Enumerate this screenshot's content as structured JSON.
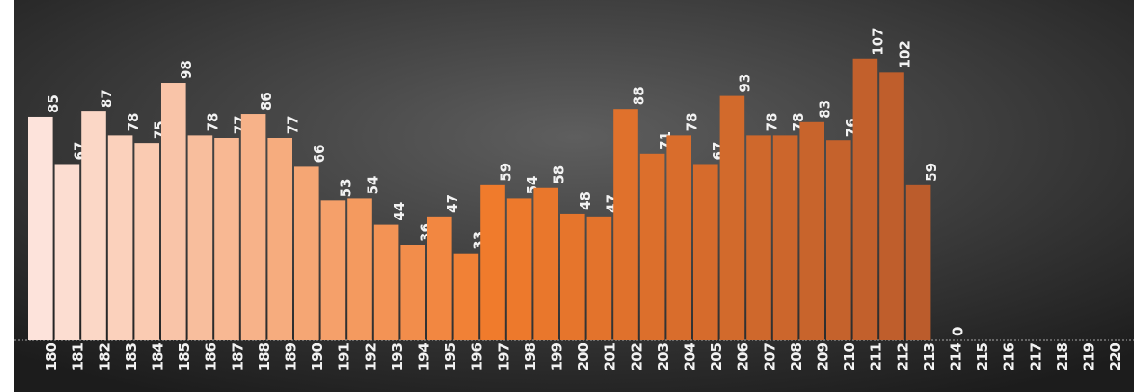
{
  "chart_data": {
    "type": "bar",
    "categories": [
      "180",
      "181",
      "182",
      "183",
      "184",
      "185",
      "186",
      "187",
      "188",
      "189",
      "190",
      "191",
      "192",
      "193",
      "194",
      "195",
      "196",
      "197",
      "198",
      "199",
      "200",
      "201",
      "202",
      "203",
      "204",
      "205",
      "206",
      "207",
      "208",
      "209",
      "210",
      "211",
      "212",
      "213",
      "214",
      "215",
      "216",
      "217",
      "218",
      "219",
      "220"
    ],
    "values": [
      85,
      67,
      87,
      78,
      75,
      98,
      78,
      77,
      86,
      77,
      66,
      53,
      54,
      44,
      36,
      47,
      33,
      59,
      54,
      58,
      48,
      47,
      88,
      71,
      78,
      67,
      93,
      78,
      78,
      83,
      76,
      107,
      102,
      59,
      0,
      null,
      null,
      null,
      null,
      null,
      null
    ],
    "color_scale": [
      "#fde3db",
      "#f07b2c",
      "#b85a2c"
    ],
    "ylim": [
      0,
      110
    ]
  }
}
